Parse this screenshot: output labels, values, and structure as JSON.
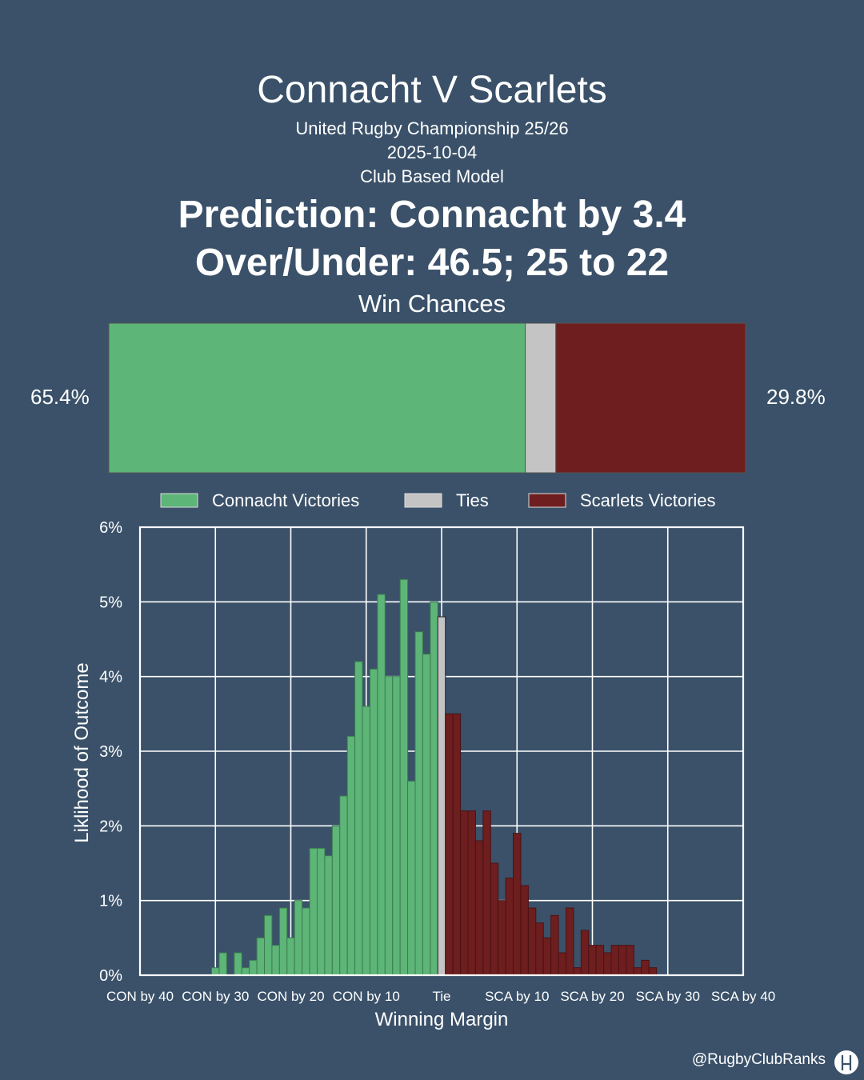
{
  "header": {
    "title": "Connacht V Scarlets",
    "subtitle": "United Rugby Championship 25/26",
    "date": "2025-10-04",
    "model": "Club Based Model",
    "prediction": "Prediction: Connacht by 3.4",
    "over_under": "Over/Under: 46.5; 25 to 22",
    "win_chances_label": "Win Chances"
  },
  "win_bar": {
    "home_pct": 65.4,
    "tie_pct": 4.8,
    "away_pct": 29.8,
    "home_label": "65.4%",
    "away_label": "29.8%"
  },
  "colors": {
    "background": "#3a5169",
    "home": "#5db577",
    "tie": "#c4c4c4",
    "away": "#6e1e1e"
  },
  "legend": [
    "Connacht Victories",
    "Ties",
    "Scarlets Victories"
  ],
  "chart_data": {
    "type": "bar",
    "xlabel": "Winning Margin",
    "ylabel": "Liklihood of Outcome",
    "xlim": [
      -40,
      40
    ],
    "ylim": [
      0,
      6
    ],
    "x_ticks": [
      -40,
      -30,
      -20,
      -10,
      0,
      10,
      20,
      30,
      40
    ],
    "x_tick_labels": [
      "CON by 40",
      "CON by 30",
      "CON by 20",
      "CON by 10",
      "Tie",
      "SCA by 10",
      "SCA by 20",
      "SCA by 30",
      "SCA by 40"
    ],
    "y_ticks": [
      0,
      1,
      2,
      3,
      4,
      5,
      6
    ],
    "y_tick_labels": [
      "0%",
      "1%",
      "2%",
      "3%",
      "4%",
      "5%",
      "6%"
    ],
    "grid": true,
    "legend_position": "top",
    "series": [
      {
        "name": "Connacht Victories",
        "x": [
          -30,
          -29,
          -28,
          -27,
          -26,
          -25,
          -24,
          -23,
          -22,
          -21,
          -20,
          -19,
          -18,
          -17,
          -16,
          -15,
          -14,
          -13,
          -12,
          -11,
          -10,
          -9,
          -8,
          -7,
          -6,
          -5,
          -4,
          -3,
          -2,
          -1
        ],
        "values": [
          0.1,
          0.3,
          0.0,
          0.3,
          0.1,
          0.2,
          0.5,
          0.8,
          0.4,
          0.9,
          0.5,
          1.0,
          0.9,
          1.7,
          1.7,
          1.6,
          2.0,
          2.4,
          3.2,
          4.2,
          3.6,
          4.1,
          5.1,
          4.0,
          4.0,
          5.3,
          2.6,
          4.6,
          4.3,
          5.0
        ]
      },
      {
        "name": "Ties",
        "x": [
          0
        ],
        "values": [
          4.8
        ]
      },
      {
        "name": "Scarlets Victories",
        "x": [
          1,
          2,
          3,
          4,
          5,
          6,
          7,
          8,
          9,
          10,
          11,
          12,
          13,
          14,
          15,
          16,
          17,
          18,
          19,
          20,
          21,
          22,
          23,
          24,
          25,
          26,
          27,
          28
        ],
        "values": [
          3.5,
          3.5,
          2.2,
          2.2,
          1.8,
          2.2,
          1.5,
          1.0,
          1.3,
          1.9,
          1.2,
          0.9,
          0.7,
          0.5,
          0.8,
          0.3,
          0.9,
          0.1,
          0.6,
          0.4,
          0.4,
          0.3,
          0.4,
          0.4,
          0.4,
          0.1,
          0.2,
          0.1
        ]
      }
    ]
  },
  "footer": {
    "handle": "@RugbyClubRanks"
  }
}
